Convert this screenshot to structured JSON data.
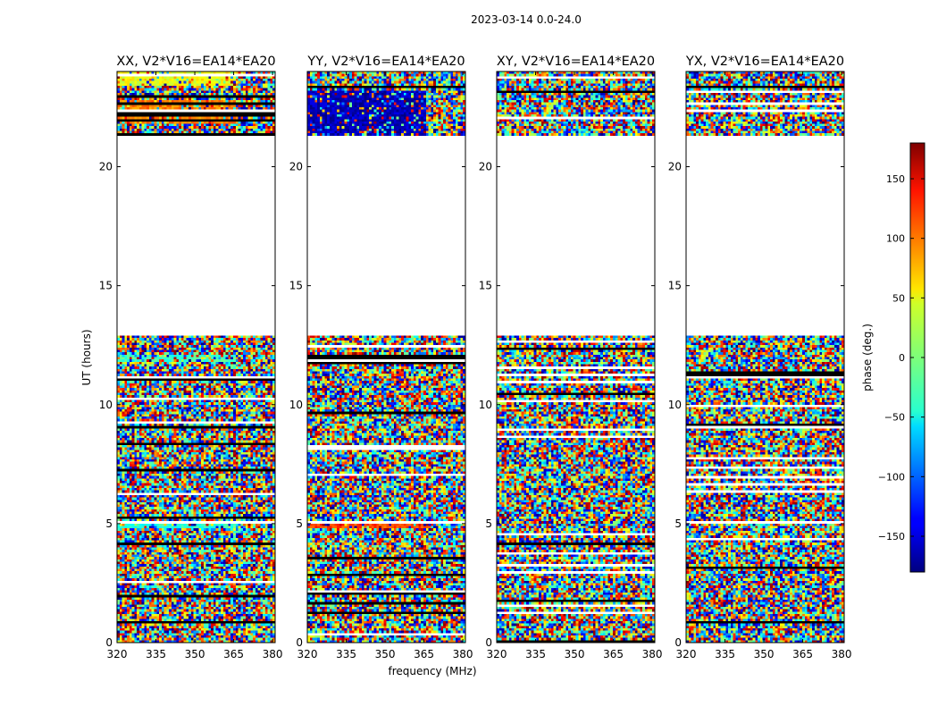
{
  "chart_data": {
    "type": "heatmap",
    "suptitle": "2023-03-14 0.0-24.0",
    "xlabel": "frequency (MHz)",
    "ylabel": "UT (hours)",
    "x_range": [
      320,
      381
    ],
    "y_range": [
      0,
      24
    ],
    "x_ticks": [
      320,
      335,
      350,
      365,
      380
    ],
    "y_ticks": [
      0,
      5,
      10,
      15,
      20
    ],
    "data_gap_hours": [
      12.9,
      21.3
    ],
    "colorbar": {
      "label": "phase (deg.)",
      "range": [
        -180,
        180
      ],
      "ticks": [
        -150,
        -100,
        -50,
        0,
        50,
        100,
        150
      ],
      "tick_labels": [
        "−150",
        "−100",
        "−50",
        "0",
        "50",
        "100",
        "150"
      ],
      "colormap": "jet"
    },
    "panels": [
      {
        "title": "XX, V2*V16=EA14*EA20",
        "polarization": "XX",
        "features": [
          {
            "ut": [
              4.8,
              5.1
            ],
            "phase": -30
          },
          {
            "ut": [
              11.8,
              12.1
            ],
            "phase": -25
          },
          {
            "ut": [
              21.8,
              22.8
            ],
            "phase": 90
          },
          {
            "ut": [
              23.4,
              24.0
            ],
            "phase": 40
          }
        ]
      },
      {
        "title": "YY, V2*V16=EA14*EA20",
        "polarization": "YY",
        "features": [
          {
            "ut": [
              4.8,
              5.1
            ],
            "phase": 110
          },
          {
            "ut": [
              11.8,
              12.1
            ],
            "phase": 70
          },
          {
            "ut": [
              21.3,
              23.2
            ],
            "phase": -160
          }
        ]
      },
      {
        "title": "XY, V2*V16=EA14*EA20",
        "polarization": "XY",
        "features": []
      },
      {
        "title": "YX, V2*V16=EA14*EA20",
        "polarization": "YX",
        "features": []
      }
    ]
  }
}
